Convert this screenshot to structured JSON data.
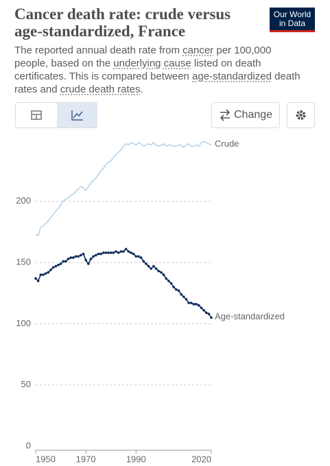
{
  "ui": {
    "logo": [
      "Our World",
      "in Data"
    ],
    "change_button": "Change"
  },
  "chart_data": {
    "type": "line",
    "title": [
      "Cancer death rate: crude versus",
      "age-standardized, France"
    ],
    "subtitle": [
      "The reported annual death rate from ",
      "cancer",
      " per 100,000",
      "people, based on the ",
      "underlying cause",
      " listed on death",
      "certificates. This is compared between ",
      "age-standardized",
      " death",
      "rates and ",
      "crude death rates",
      "."
    ],
    "x": [
      1950,
      1951,
      1952,
      1953,
      1954,
      1955,
      1956,
      1957,
      1958,
      1959,
      1960,
      1961,
      1962,
      1963,
      1964,
      1965,
      1966,
      1967,
      1968,
      1969,
      1970,
      1971,
      1972,
      1973,
      1974,
      1975,
      1976,
      1977,
      1978,
      1979,
      1980,
      1981,
      1982,
      1983,
      1984,
      1985,
      1986,
      1987,
      1988,
      1989,
      1990,
      1991,
      1992,
      1993,
      1994,
      1995,
      1996,
      1997,
      1998,
      1999,
      2000,
      2001,
      2002,
      2003,
      2004,
      2005,
      2006,
      2007,
      2008,
      2009,
      2010,
      2011,
      2012,
      2013,
      2014,
      2015,
      2016,
      2017,
      2018,
      2019,
      2020
    ],
    "series": [
      {
        "name": "Crude",
        "color": "#b7d3e8",
        "markers": false,
        "values": [
          173,
          172,
          179,
          180,
          182,
          184,
          187,
          189,
          192,
          194,
          197,
          200,
          202,
          203,
          205,
          206,
          208,
          210,
          212,
          211,
          209,
          212,
          215,
          217,
          219,
          222,
          225,
          227,
          230,
          232,
          233,
          236,
          238,
          240,
          242,
          245,
          247,
          246,
          248,
          247,
          246,
          248,
          247,
          245,
          246,
          247,
          246,
          248,
          246,
          245,
          246,
          247,
          245,
          246,
          246,
          245,
          245,
          246,
          246,
          244,
          246,
          247,
          245,
          245,
          246,
          245,
          248,
          249,
          248,
          247,
          246
        ]
      },
      {
        "name": "Age-standardized",
        "color": "#0d2b5a",
        "markers": true,
        "values": [
          137,
          135,
          140,
          140,
          141,
          142,
          144,
          146,
          147,
          148,
          149,
          151,
          151,
          153,
          154,
          154,
          155,
          155,
          156,
          157,
          152,
          149,
          153,
          155,
          156,
          157,
          157,
          158,
          158,
          158,
          158,
          158,
          159,
          158,
          159,
          159,
          161,
          159,
          158,
          157,
          155,
          155,
          154,
          151,
          149,
          147,
          145,
          147,
          145,
          143,
          142,
          140,
          137,
          135,
          133,
          130,
          128,
          127,
          124,
          122,
          120,
          117,
          117,
          116,
          116,
          115,
          113,
          111,
          109,
          108,
          105
        ]
      }
    ],
    "xlim": [
      1950,
      2020
    ],
    "xticks": [
      1950,
      1970,
      1990,
      2020
    ],
    "ylim": [
      0,
      250
    ],
    "yticks": [
      0,
      50,
      100,
      150,
      200
    ],
    "grid": true
  }
}
